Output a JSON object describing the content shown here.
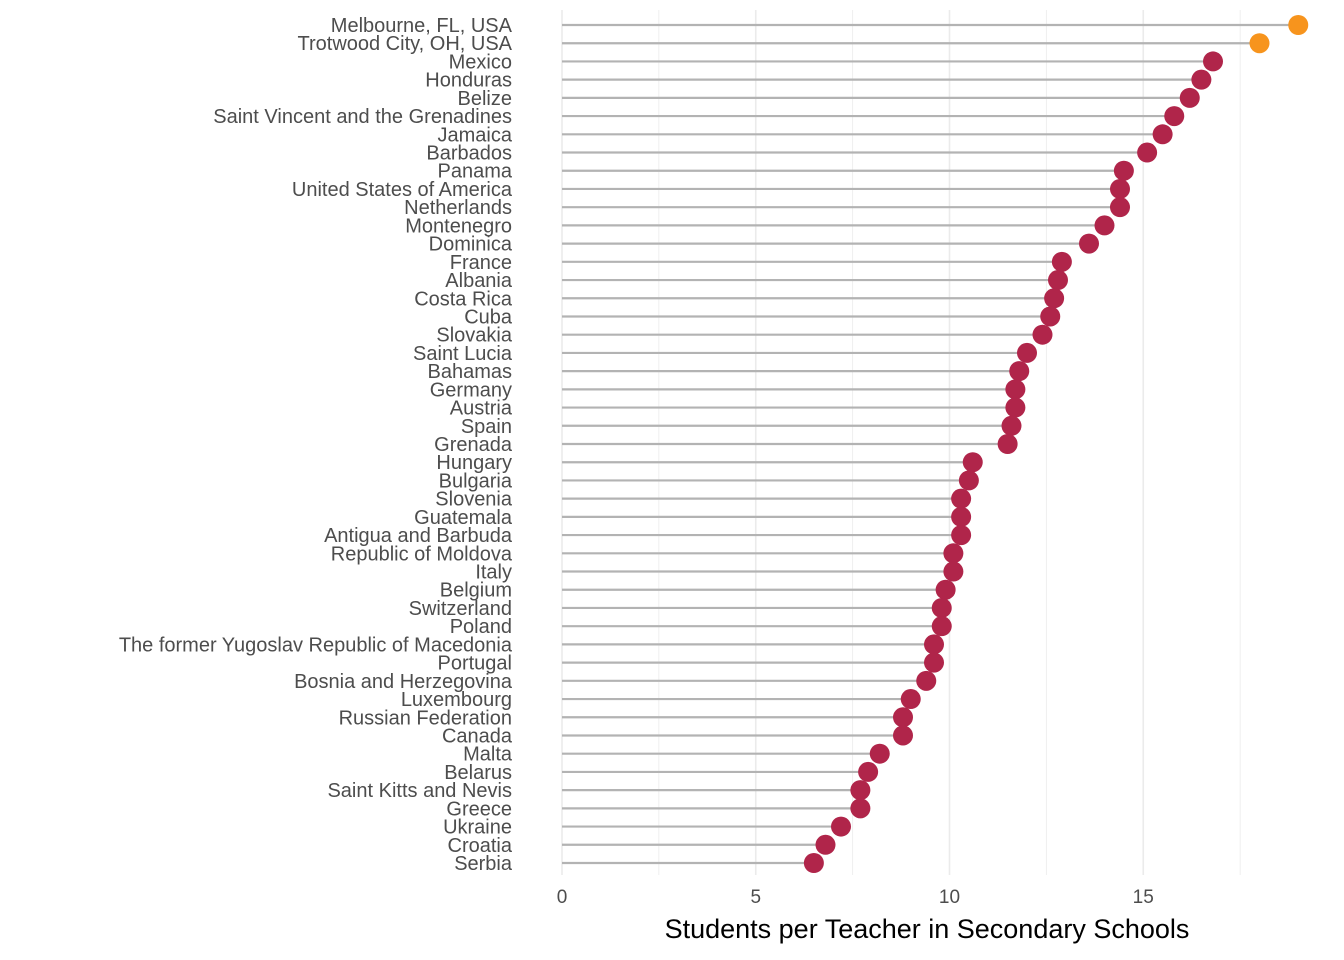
{
  "chart_data": {
    "type": "lollipop",
    "title": "",
    "xlabel": "Students per Teacher in Secondary Schools",
    "ylabel": "",
    "xlim": [
      0,
      19
    ],
    "xticks": [
      0,
      5,
      10,
      15
    ],
    "grid": true,
    "colors": {
      "highlight": "#f7941d",
      "default": "#b0254a",
      "stem": "#b3b3b3",
      "grid": "#ebebeb"
    },
    "points": [
      {
        "label": "Melbourne, FL, USA",
        "value": 19.0,
        "highlight": true
      },
      {
        "label": "Trotwood City, OH, USA",
        "value": 18.0,
        "highlight": true
      },
      {
        "label": "Mexico",
        "value": 16.8,
        "highlight": false
      },
      {
        "label": "Honduras",
        "value": 16.5,
        "highlight": false
      },
      {
        "label": "Belize",
        "value": 16.2,
        "highlight": false
      },
      {
        "label": "Saint Vincent and the Grenadines",
        "value": 15.8,
        "highlight": false
      },
      {
        "label": "Jamaica",
        "value": 15.5,
        "highlight": false
      },
      {
        "label": "Barbados",
        "value": 15.1,
        "highlight": false
      },
      {
        "label": "Panama",
        "value": 14.5,
        "highlight": false
      },
      {
        "label": "United States of America",
        "value": 14.4,
        "highlight": false
      },
      {
        "label": "Netherlands",
        "value": 14.4,
        "highlight": false
      },
      {
        "label": "Montenegro",
        "value": 14.0,
        "highlight": false
      },
      {
        "label": "Dominica",
        "value": 13.6,
        "highlight": false
      },
      {
        "label": "France",
        "value": 12.9,
        "highlight": false
      },
      {
        "label": "Albania",
        "value": 12.8,
        "highlight": false
      },
      {
        "label": "Costa Rica",
        "value": 12.7,
        "highlight": false
      },
      {
        "label": "Cuba",
        "value": 12.6,
        "highlight": false
      },
      {
        "label": "Slovakia",
        "value": 12.4,
        "highlight": false
      },
      {
        "label": "Saint Lucia",
        "value": 12.0,
        "highlight": false
      },
      {
        "label": "Bahamas",
        "value": 11.8,
        "highlight": false
      },
      {
        "label": "Germany",
        "value": 11.7,
        "highlight": false
      },
      {
        "label": "Austria",
        "value": 11.7,
        "highlight": false
      },
      {
        "label": "Spain",
        "value": 11.6,
        "highlight": false
      },
      {
        "label": "Grenada",
        "value": 11.5,
        "highlight": false
      },
      {
        "label": "Hungary",
        "value": 10.6,
        "highlight": false
      },
      {
        "label": "Bulgaria",
        "value": 10.5,
        "highlight": false
      },
      {
        "label": "Slovenia",
        "value": 10.3,
        "highlight": false
      },
      {
        "label": "Guatemala",
        "value": 10.3,
        "highlight": false
      },
      {
        "label": "Antigua and Barbuda",
        "value": 10.3,
        "highlight": false
      },
      {
        "label": "Republic of Moldova",
        "value": 10.1,
        "highlight": false
      },
      {
        "label": "Italy",
        "value": 10.1,
        "highlight": false
      },
      {
        "label": "Belgium",
        "value": 9.9,
        "highlight": false
      },
      {
        "label": "Switzerland",
        "value": 9.8,
        "highlight": false
      },
      {
        "label": "Poland",
        "value": 9.8,
        "highlight": false
      },
      {
        "label": "The former Yugoslav Republic of Macedonia",
        "value": 9.6,
        "highlight": false
      },
      {
        "label": "Portugal",
        "value": 9.6,
        "highlight": false
      },
      {
        "label": "Bosnia and Herzegovina",
        "value": 9.4,
        "highlight": false
      },
      {
        "label": "Luxembourg",
        "value": 9.0,
        "highlight": false
      },
      {
        "label": "Russian Federation",
        "value": 8.8,
        "highlight": false
      },
      {
        "label": "Canada",
        "value": 8.8,
        "highlight": false
      },
      {
        "label": "Malta",
        "value": 8.2,
        "highlight": false
      },
      {
        "label": "Belarus",
        "value": 7.9,
        "highlight": false
      },
      {
        "label": "Saint Kitts and Nevis",
        "value": 7.7,
        "highlight": false
      },
      {
        "label": "Greece",
        "value": 7.7,
        "highlight": false
      },
      {
        "label": "Ukraine",
        "value": 7.2,
        "highlight": false
      },
      {
        "label": "Croatia",
        "value": 6.8,
        "highlight": false
      },
      {
        "label": "Serbia",
        "value": 6.5,
        "highlight": false
      }
    ]
  }
}
